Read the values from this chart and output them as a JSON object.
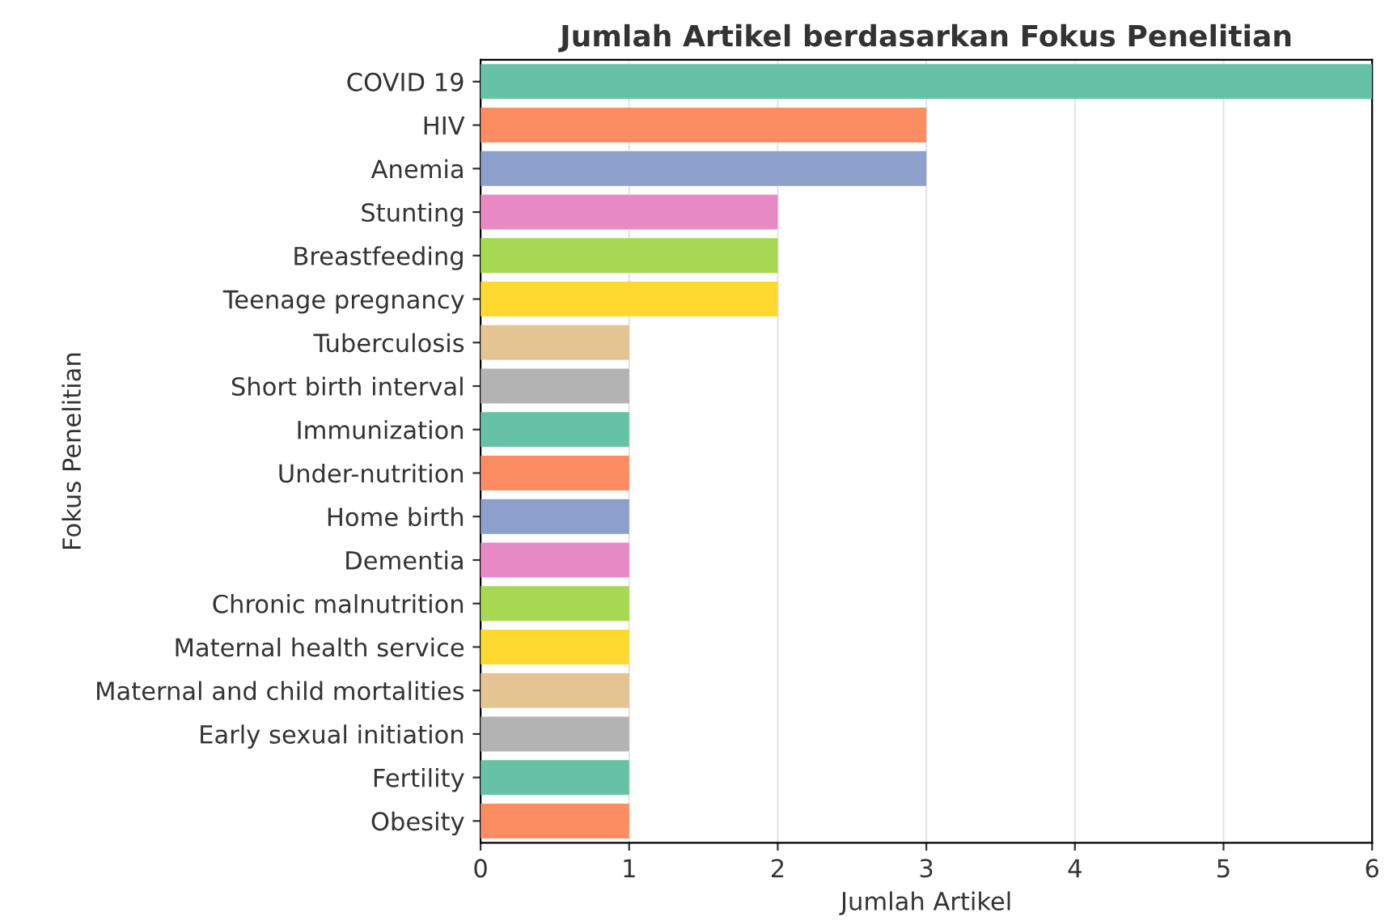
{
  "chart_data": {
    "type": "bar",
    "orientation": "horizontal",
    "title": "Jumlah Artikel berdasarkan Fokus Penelitian",
    "xlabel": "Jumlah Artikel",
    "ylabel": "Fokus Penelitian",
    "categories": [
      "COVID 19",
      "HIV",
      "Anemia",
      "Stunting",
      "Breastfeeding",
      "Teenage pregnancy",
      "Tuberculosis",
      "Short birth interval",
      "Immunization",
      "Under-nutrition",
      "Home birth",
      "Dementia",
      "Chronic malnutrition",
      "Maternal health service",
      "Maternal and child mortalities",
      "Early sexual initiation",
      "Fertility",
      "Obesity"
    ],
    "values": [
      6,
      3,
      3,
      2,
      2,
      2,
      1,
      1,
      1,
      1,
      1,
      1,
      1,
      1,
      1,
      1,
      1,
      1
    ],
    "colors": [
      "#66c2a5",
      "#fc8d62",
      "#8da0cb",
      "#e78ac3",
      "#a6d854",
      "#ffd92f",
      "#e5c494",
      "#b3b3b3",
      "#66c2a5",
      "#fc8d62",
      "#8da0cb",
      "#e78ac3",
      "#a6d854",
      "#ffd92f",
      "#e5c494",
      "#b3b3b3",
      "#66c2a5",
      "#fc8d62"
    ],
    "xlim": [
      0,
      6
    ],
    "xticks": [
      0,
      1,
      2,
      3,
      4,
      5,
      6
    ],
    "grid": "x",
    "legend": false
  }
}
